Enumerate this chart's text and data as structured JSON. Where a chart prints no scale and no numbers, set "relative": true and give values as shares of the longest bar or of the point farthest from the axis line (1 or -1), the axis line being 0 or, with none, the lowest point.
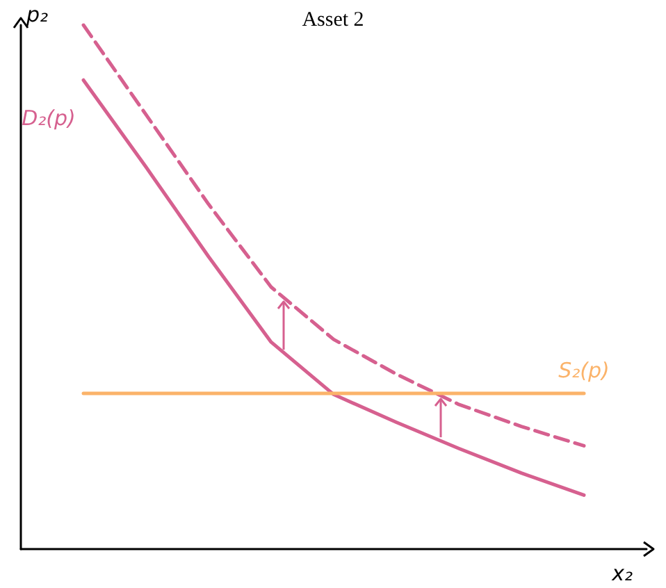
{
  "chart_data": {
    "type": "line",
    "title": "Asset 2",
    "xlabel": "x₂",
    "ylabel": "p₂",
    "relative": true,
    "legend": false,
    "grid": false,
    "marker": "none",
    "categories": [
      null,
      null,
      null,
      null,
      null,
      null,
      null,
      null,
      null,
      null,
      null
    ],
    "series": [
      {
        "name": "D₂(p)",
        "color": "#d6608f",
        "line_style": "solid",
        "values": [
          null,
          0.895,
          0.729,
          0.558,
          0.395,
          0.295,
          0.242,
          0.192,
          0.145,
          0.103,
          null
        ]
      },
      {
        "color": "#d6608f",
        "line_style": "dashed",
        "values": [
          null,
          1,
          0.829,
          0.658,
          0.5,
          0.4,
          0.334,
          0.276,
          0.234,
          0.197,
          null
        ]
      },
      {
        "name": "S₂(p)",
        "color": "#fbb36a",
        "line_style": "solid",
        "values": [
          null,
          0.297,
          0.297,
          0.297,
          0.297,
          0.297,
          0.297,
          0.297,
          0.297,
          0.297,
          null
        ]
      }
    ]
  }
}
